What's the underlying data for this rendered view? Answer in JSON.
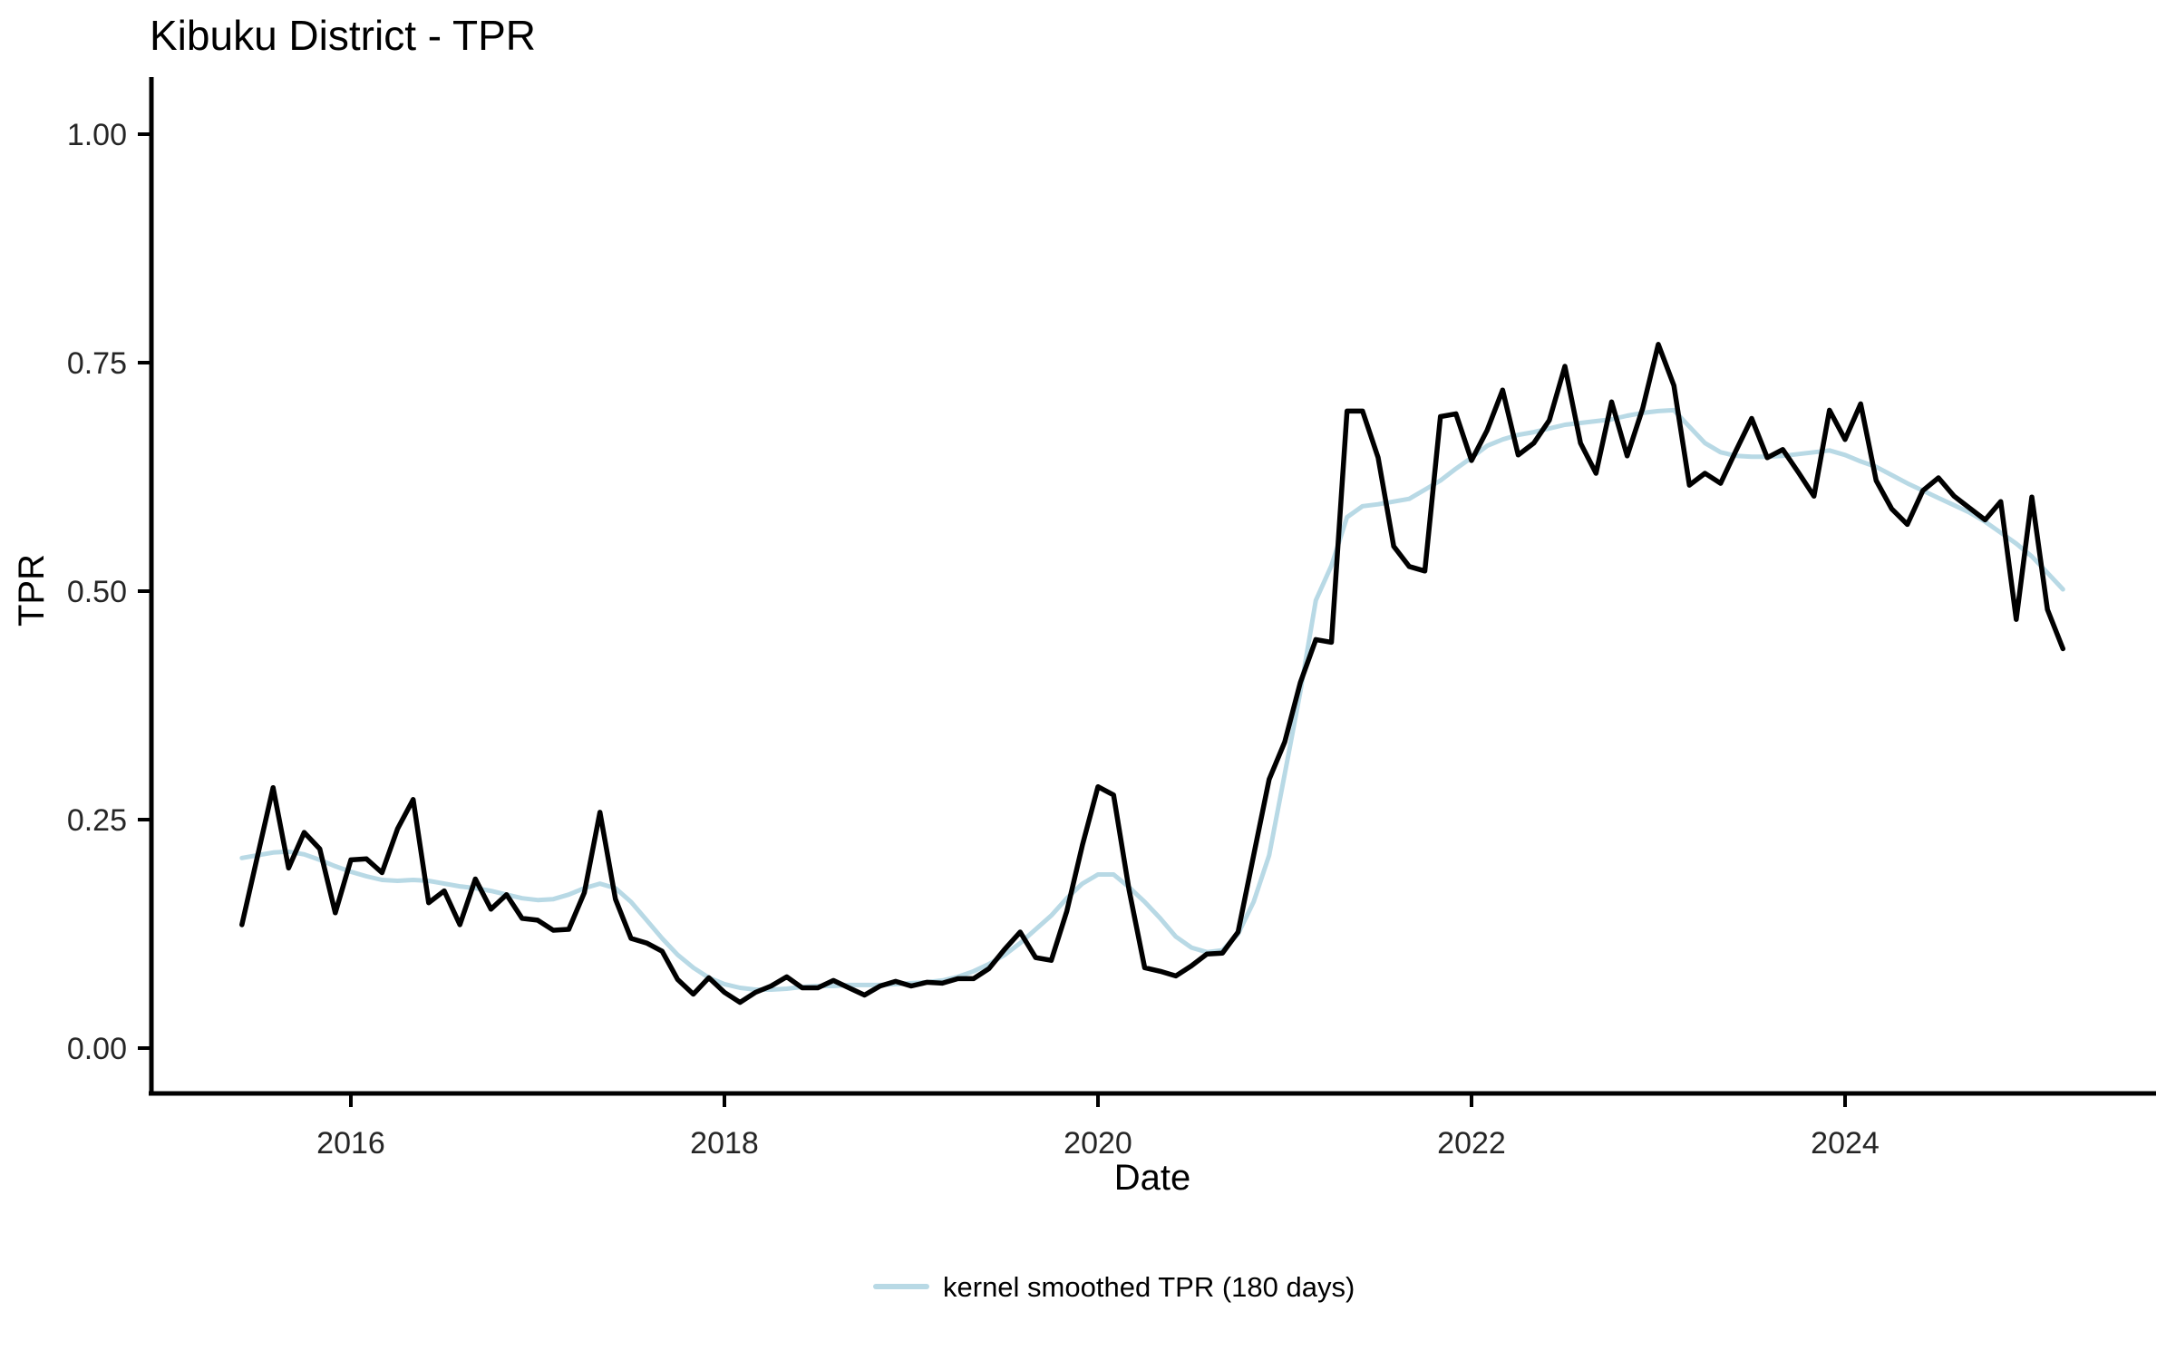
{
  "chart_data": {
    "type": "line",
    "title": "Kibuku District - TPR",
    "xlabel": "Date",
    "ylabel": "TPR",
    "ylim": [
      0,
      1
    ],
    "grid": "off",
    "legend_position": "bottom",
    "y_ticks": [
      0,
      0.25,
      0.5,
      0.75,
      1
    ],
    "y_tick_labels": [
      "0.00",
      "0.25",
      "0.50",
      "0.75",
      "1.00"
    ],
    "x_ticks_years": [
      2016,
      2018,
      2020,
      2022,
      2024
    ],
    "x_tick_labels": [
      "2016",
      "2018",
      "2020",
      "2022",
      "2024"
    ],
    "months": [
      "2015-06",
      "2015-07",
      "2015-08",
      "2015-09",
      "2015-10",
      "2015-11",
      "2015-12",
      "2016-01",
      "2016-02",
      "2016-03",
      "2016-04",
      "2016-05",
      "2016-06",
      "2016-07",
      "2016-08",
      "2016-09",
      "2016-10",
      "2016-11",
      "2016-12",
      "2017-01",
      "2017-02",
      "2017-03",
      "2017-04",
      "2017-05",
      "2017-06",
      "2017-07",
      "2017-08",
      "2017-09",
      "2017-10",
      "2017-11",
      "2017-12",
      "2018-01",
      "2018-02",
      "2018-03",
      "2018-04",
      "2018-05",
      "2018-06",
      "2018-07",
      "2018-08",
      "2018-09",
      "2018-10",
      "2018-11",
      "2018-12",
      "2019-01",
      "2019-02",
      "2019-03",
      "2019-04",
      "2019-05",
      "2019-06",
      "2019-07",
      "2019-08",
      "2019-09",
      "2019-10",
      "2019-11",
      "2019-12",
      "2020-01",
      "2020-02",
      "2020-03",
      "2020-04",
      "2020-05",
      "2020-06",
      "2020-07",
      "2020-08",
      "2020-09",
      "2020-10",
      "2020-11",
      "2020-12",
      "2021-01",
      "2021-02",
      "2021-03",
      "2021-04",
      "2021-05",
      "2021-06",
      "2021-07",
      "2021-08",
      "2021-09",
      "2021-10",
      "2021-11",
      "2021-12",
      "2022-01",
      "2022-02",
      "2022-03",
      "2022-04",
      "2022-05",
      "2022-06",
      "2022-07",
      "2022-08",
      "2022-09",
      "2022-10",
      "2022-11",
      "2022-12",
      "2023-01",
      "2023-02",
      "2023-03",
      "2023-04",
      "2023-05",
      "2023-06",
      "2023-07",
      "2023-08",
      "2023-09",
      "2023-10",
      "2023-11",
      "2023-12",
      "2024-01",
      "2024-02",
      "2024-03",
      "2024-04",
      "2024-05",
      "2024-06",
      "2024-07",
      "2024-08",
      "2024-09",
      "2024-10",
      "2024-11",
      "2024-12",
      "2025-01",
      "2025-02",
      "2025-03"
    ],
    "series": [
      {
        "name": "TPR",
        "color": "#000000",
        "values": [
          0.135,
          0.21,
          0.285,
          0.197,
          0.236,
          0.218,
          0.148,
          0.206,
          0.207,
          0.192,
          0.24,
          0.272,
          0.159,
          0.172,
          0.135,
          0.185,
          0.152,
          0.168,
          0.142,
          0.14,
          0.129,
          0.13,
          0.17,
          0.258,
          0.163,
          0.12,
          0.115,
          0.106,
          0.075,
          0.059,
          0.077,
          0.061,
          0.05,
          0.061,
          0.068,
          0.078,
          0.066,
          0.066,
          0.074,
          0.066,
          0.058,
          0.068,
          0.073,
          0.068,
          0.072,
          0.071,
          0.076,
          0.076,
          0.087,
          0.108,
          0.127,
          0.099,
          0.096,
          0.15,
          0.222,
          0.286,
          0.277,
          0.173,
          0.088,
          0.084,
          0.079,
          0.09,
          0.103,
          0.104,
          0.127,
          0.211,
          0.294,
          0.335,
          0.4,
          0.447,
          0.444,
          0.697,
          0.697,
          0.646,
          0.549,
          0.527,
          0.522,
          0.691,
          0.694,
          0.643,
          0.676,
          0.72,
          0.649,
          0.662,
          0.687,
          0.746,
          0.662,
          0.629,
          0.707,
          0.648,
          0.7,
          0.77,
          0.725,
          0.616,
          0.629,
          0.618,
          0.654,
          0.689,
          0.646,
          0.655,
          0.63,
          0.604,
          0.698,
          0.666,
          0.705,
          0.621,
          0.59,
          0.573,
          0.61,
          0.624,
          0.604,
          0.591,
          0.578,
          0.598,
          0.469,
          0.603,
          0.48,
          0.437
        ]
      },
      {
        "name": "kernel smoothed TPR (180 days)",
        "color": "#b8d9e5",
        "values": [
          0.208,
          0.211,
          0.214,
          0.215,
          0.212,
          0.206,
          0.199,
          0.193,
          0.188,
          0.184,
          0.183,
          0.184,
          0.183,
          0.18,
          0.177,
          0.175,
          0.172,
          0.168,
          0.164,
          0.162,
          0.163,
          0.168,
          0.175,
          0.18,
          0.175,
          0.16,
          0.14,
          0.12,
          0.102,
          0.088,
          0.077,
          0.07,
          0.066,
          0.064,
          0.064,
          0.065,
          0.067,
          0.068,
          0.068,
          0.069,
          0.069,
          0.069,
          0.07,
          0.071,
          0.072,
          0.074,
          0.078,
          0.084,
          0.092,
          0.102,
          0.115,
          0.13,
          0.145,
          0.164,
          0.18,
          0.19,
          0.19,
          0.176,
          0.16,
          0.142,
          0.122,
          0.11,
          0.105,
          0.107,
          0.125,
          0.16,
          0.211,
          0.3,
          0.39,
          0.49,
          0.528,
          0.581,
          0.593,
          0.595,
          0.598,
          0.601,
          0.611,
          0.621,
          0.634,
          0.646,
          0.659,
          0.666,
          0.671,
          0.674,
          0.678,
          0.682,
          0.684,
          0.686,
          0.688,
          0.692,
          0.695,
          0.697,
          0.698,
          0.68,
          0.662,
          0.652,
          0.648,
          0.647,
          0.647,
          0.648,
          0.65,
          0.652,
          0.654,
          0.649,
          0.642,
          0.636,
          0.627,
          0.618,
          0.61,
          0.602,
          0.594,
          0.586,
          0.576,
          0.564,
          0.552,
          0.538,
          0.52,
          0.502
        ]
      }
    ]
  }
}
